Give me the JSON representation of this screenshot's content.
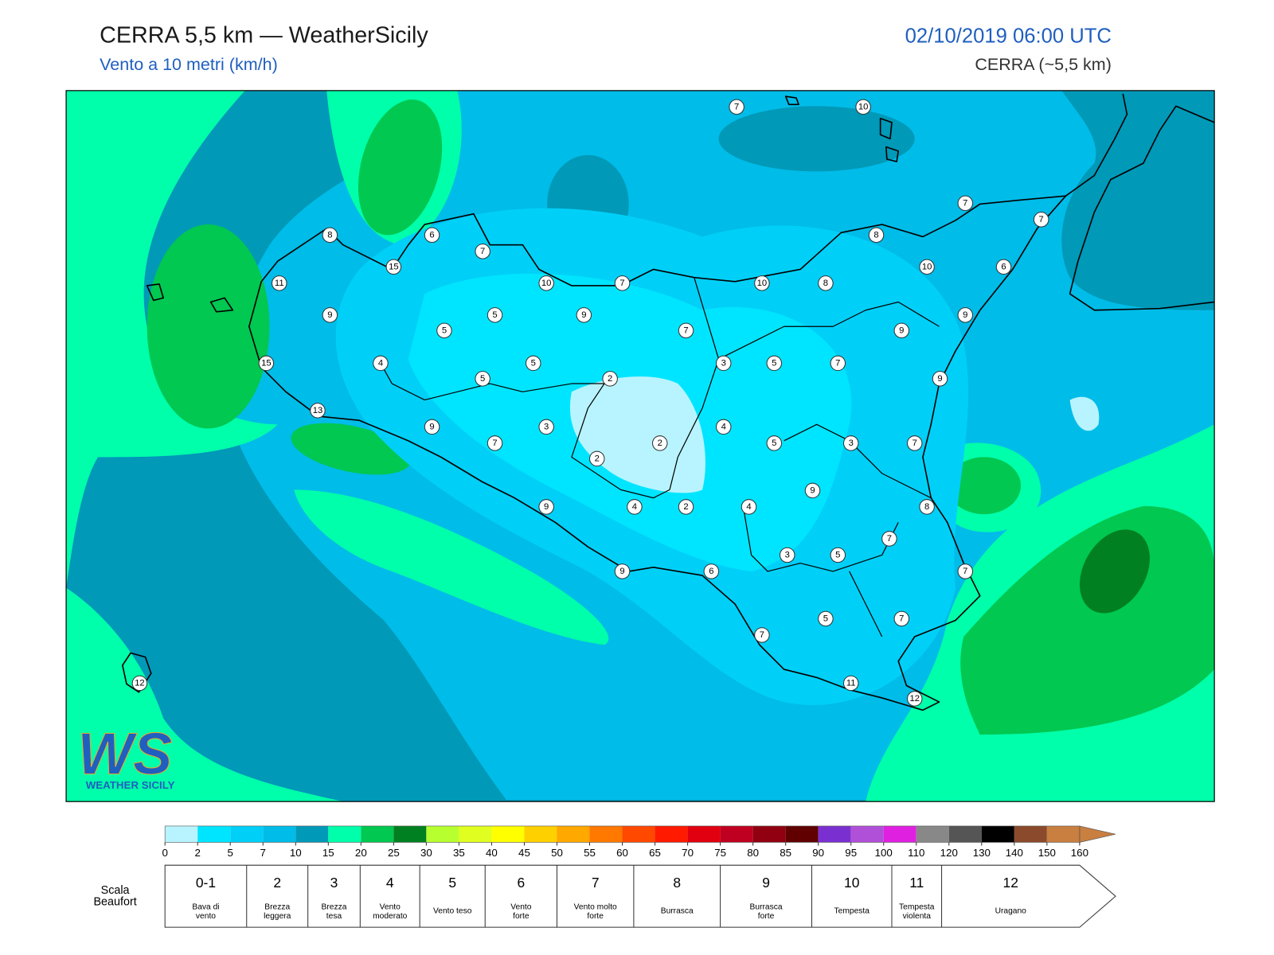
{
  "header": {
    "title": "CERRA 5,5 km — WeatherSicily",
    "subtitle": "Vento a 10 metri (km/h)",
    "datetime": "02/10/2019 06:00 UTC",
    "model": "CERRA (~5,5 km)"
  },
  "map": {
    "stations": [
      7,
      10,
      7,
      7,
      8,
      6,
      7,
      8,
      15,
      10,
      6,
      11,
      10,
      7,
      10,
      8,
      9,
      5,
      9,
      9,
      5,
      7,
      9,
      15,
      4,
      5,
      3,
      5,
      7,
      5,
      2,
      9,
      13,
      9,
      3,
      4,
      7,
      2,
      5,
      3,
      7,
      2,
      9,
      9,
      4,
      2,
      4,
      8,
      7,
      3,
      5,
      9,
      6,
      7,
      5,
      7,
      7,
      12,
      11,
      12
    ]
  },
  "logo": {
    "mark": "WS",
    "name": "WEATHER SICILY"
  },
  "colorbar": {
    "ticks": [
      0,
      2,
      5,
      7,
      10,
      15,
      20,
      25,
      30,
      35,
      40,
      45,
      50,
      55,
      60,
      65,
      70,
      75,
      80,
      85,
      90,
      95,
      100,
      110,
      120,
      130,
      140,
      150,
      160
    ],
    "colors": [
      "#b8f4ff",
      "#00e5ff",
      "#00d0f8",
      "#00bce8",
      "#0099b8",
      "#00ffaa",
      "#00c850",
      "#008020",
      "#b8ff30",
      "#e0ff20",
      "#ffff00",
      "#ffd000",
      "#ffa800",
      "#ff7800",
      "#ff4800",
      "#ff1a00",
      "#e00010",
      "#c00020",
      "#900010",
      "#600000",
      "#7a30d0",
      "#b050d8",
      "#e020e0",
      "#888888",
      "#555555",
      "#000000",
      "#8b4a2b",
      "#c87f40"
    ]
  },
  "beaufort": {
    "label": [
      "Scala",
      "Beaufort"
    ],
    "levels": [
      {
        "number": "0-1",
        "description": [
          "Bava di",
          "vento"
        ]
      },
      {
        "number": "2",
        "description": [
          "Brezza",
          "leggera"
        ]
      },
      {
        "number": "3",
        "description": [
          "Brezza",
          "tesa"
        ]
      },
      {
        "number": "4",
        "description": [
          "Vento",
          "moderato"
        ]
      },
      {
        "number": "5",
        "description": [
          "Vento teso"
        ]
      },
      {
        "number": "6",
        "description": [
          "Vento",
          "forte"
        ]
      },
      {
        "number": "7",
        "description": [
          "Vento molto",
          "forte"
        ]
      },
      {
        "number": "8",
        "description": [
          "Burrasca"
        ]
      },
      {
        "number": "9",
        "description": [
          "Burrasca",
          "forte"
        ]
      },
      {
        "number": "10",
        "description": [
          "Tempesta"
        ]
      },
      {
        "number": "11",
        "description": [
          "Tempesta",
          "violenta"
        ]
      },
      {
        "number": "12",
        "description": [
          "Uragano"
        ]
      }
    ]
  }
}
